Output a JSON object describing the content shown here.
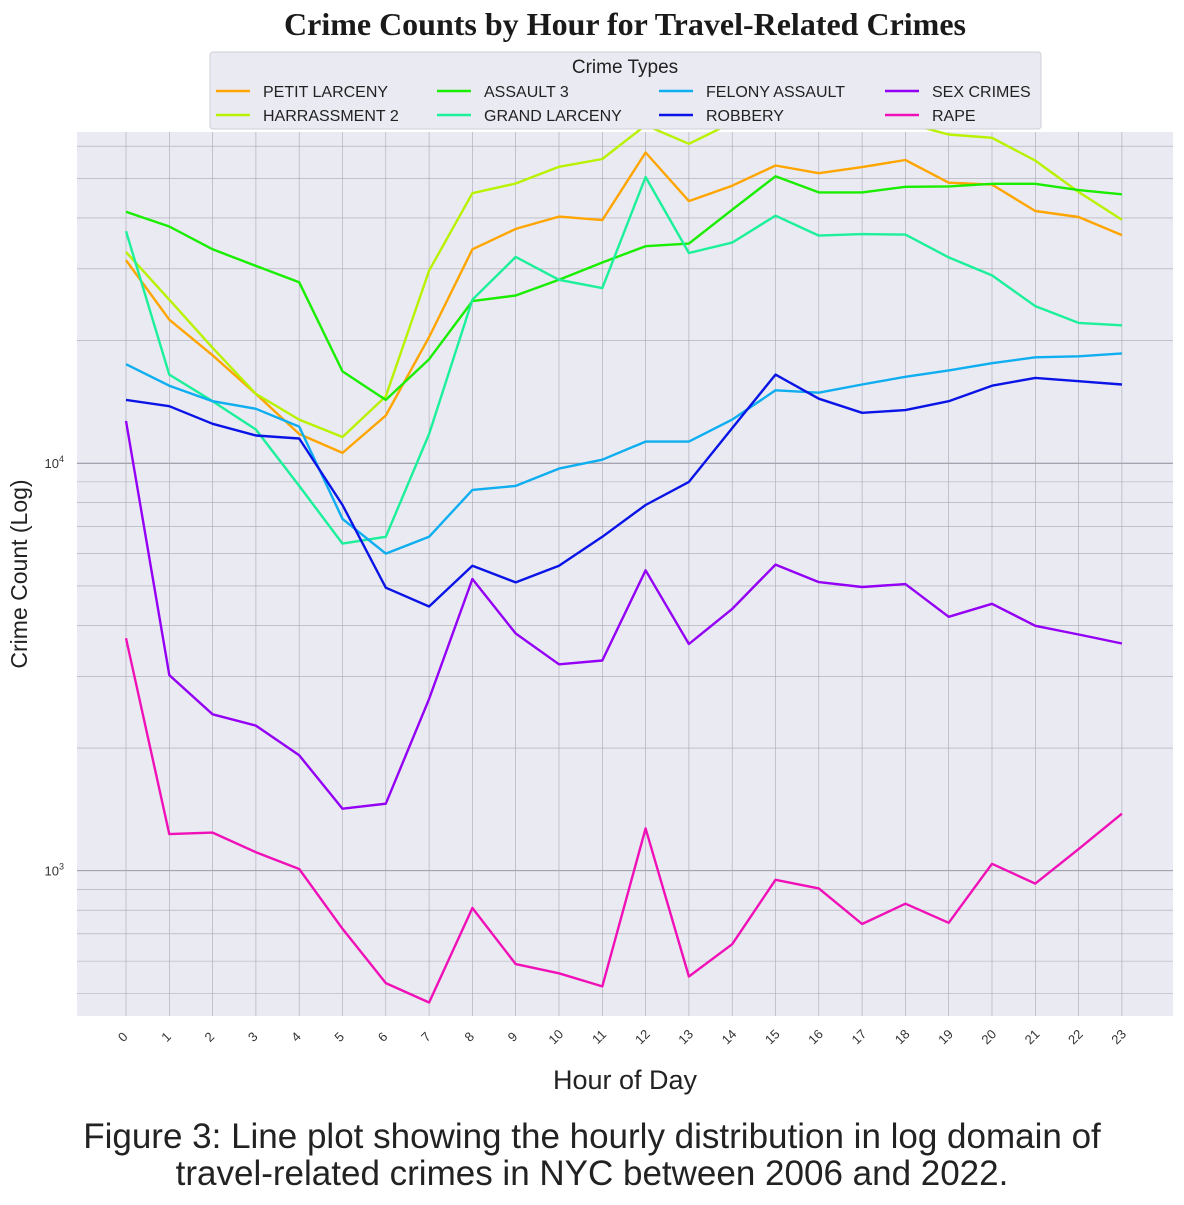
{
  "chart_data": {
    "type": "line",
    "title": "Crime Counts by Hour for Travel-Related Crimes",
    "xlabel": "Hour of Day",
    "ylabel": "Crime Count (Log)",
    "yscale": "log",
    "ylim": [
      440,
      65000
    ],
    "yticks": [
      {
        "value": 1000,
        "base": "10",
        "exp": "3"
      },
      {
        "value": 10000,
        "base": "10",
        "exp": "4"
      }
    ],
    "grid": true,
    "background": "#eaeaf2",
    "legend": {
      "title": "Crime Types",
      "placement": "top-center",
      "columns": 4
    },
    "categories": [
      "0",
      "1",
      "2",
      "3",
      "4",
      "5",
      "6",
      "7",
      "8",
      "9",
      "10",
      "11",
      "12",
      "13",
      "14",
      "15",
      "16",
      "17",
      "18",
      "19",
      "20",
      "21",
      "22",
      "23"
    ],
    "series": [
      {
        "name": "PETIT LARCENY",
        "color": "#ffa500",
        "values": [
          31500,
          22500,
          18400,
          14800,
          11800,
          10600,
          13100,
          20400,
          33500,
          37600,
          40300,
          39500,
          57900,
          44000,
          48000,
          53800,
          51500,
          53300,
          55500,
          48800,
          48300,
          41600,
          40200,
          36300
        ]
      },
      {
        "name": "HARRASSMENT 2",
        "color": "#b8f200",
        "values": [
          33000,
          25200,
          19200,
          14800,
          12800,
          11600,
          14600,
          29700,
          46000,
          48600,
          53400,
          55800,
          67500,
          60800,
          68500,
          75600,
          68200,
          67600,
          68400,
          64100,
          62900,
          55300,
          46300,
          39600
        ]
      },
      {
        "name": "ASSAULT 3",
        "color": "#1aee00",
        "values": [
          41400,
          38100,
          33500,
          30500,
          27800,
          16800,
          14300,
          18000,
          25000,
          25800,
          28200,
          31100,
          34100,
          34600,
          41900,
          50600,
          46200,
          46200,
          47700,
          47800,
          48500,
          48500,
          46800,
          45700
        ]
      },
      {
        "name": "GRAND LARCENY",
        "color": "#1cf09a",
        "values": [
          37100,
          16500,
          14200,
          12100,
          8800,
          6350,
          6600,
          11800,
          25200,
          32100,
          28200,
          26900,
          50400,
          32800,
          34800,
          40500,
          36200,
          36500,
          36400,
          32000,
          28900,
          24300,
          22100,
          21800
        ]
      },
      {
        "name": "FELONY ASSAULT",
        "color": "#0eaef0",
        "values": [
          17500,
          15500,
          14200,
          13600,
          12300,
          7300,
          6000,
          6600,
          8600,
          8800,
          9700,
          10200,
          11300,
          11300,
          12800,
          15100,
          14900,
          15600,
          16300,
          16900,
          17600,
          18200,
          18300,
          18600
        ]
      },
      {
        "name": "ROBBERY",
        "color": "#0a14e6",
        "values": [
          14300,
          13800,
          12500,
          11700,
          11500,
          7900,
          4950,
          4450,
          5600,
          5100,
          5600,
          6600,
          7900,
          9000,
          12200,
          16500,
          14400,
          13300,
          13500,
          14200,
          15500,
          16200,
          15900,
          15600
        ]
      },
      {
        "name": "SEX CRIMES",
        "color": "#9400f5",
        "values": [
          12700,
          3020,
          2420,
          2270,
          1920,
          1420,
          1460,
          2640,
          5200,
          3820,
          3210,
          3280,
          5460,
          3600,
          4390,
          5640,
          5110,
          4970,
          5050,
          4200,
          4520,
          3990,
          3800,
          3610
        ]
      },
      {
        "name": "RAPE",
        "color": "#f010b8",
        "values": [
          3720,
          1230,
          1240,
          1110,
          1010,
          720,
          530,
          475,
          810,
          590,
          560,
          520,
          1270,
          550,
          660,
          950,
          905,
          740,
          830,
          745,
          1040,
          930,
          1130,
          1380
        ]
      }
    ]
  },
  "caption": {
    "line1": "Figure 3: Line plot showing the hourly distribution in log domain of",
    "line2": "travel-related crimes in NYC between 2006 and 2022."
  }
}
